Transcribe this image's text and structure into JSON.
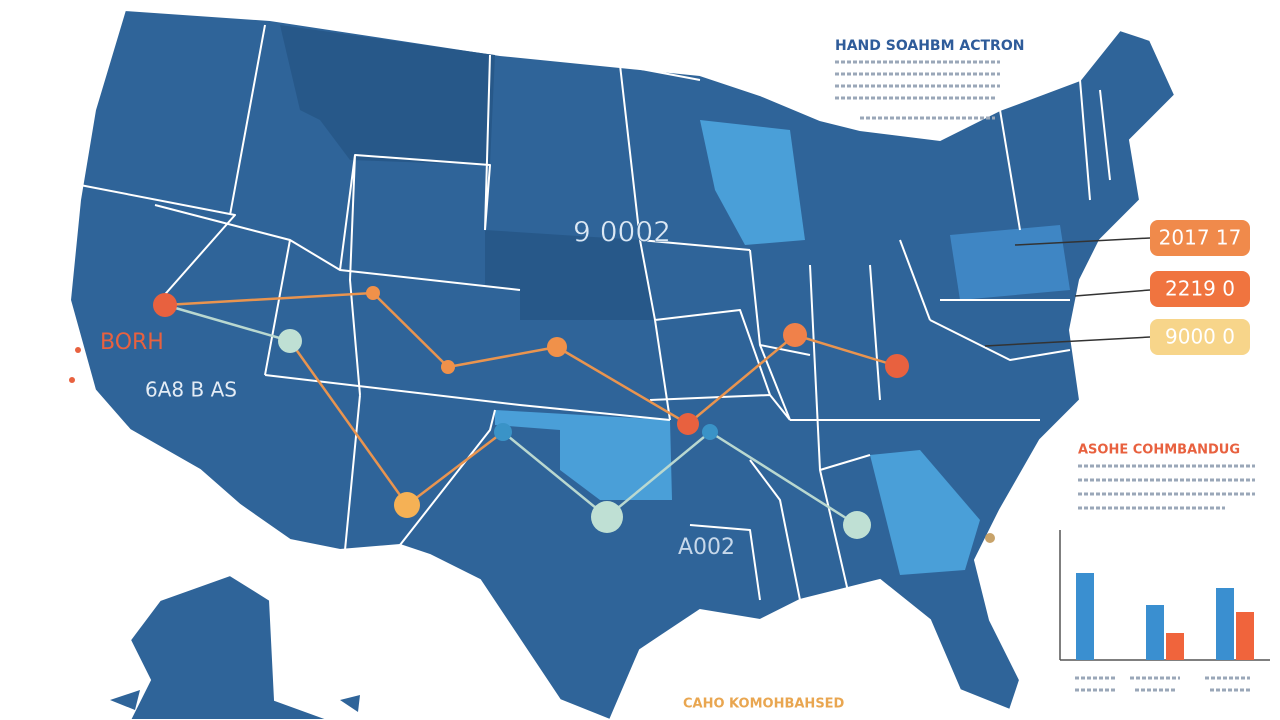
{
  "header": {
    "title": "HAND SOAHBM ACTRON"
  },
  "map_labels": [
    "9 0002",
    "BORH",
    "6A8 B AS",
    "A002"
  ],
  "callouts": [
    "2017 17",
    "2219 0",
    "9000 0"
  ],
  "section": {
    "title": "ASOHE COHMBANDUG"
  },
  "chart_data": {
    "type": "bar",
    "series": [
      {
        "color": "#3a8fd0",
        "values": [
          87,
          55,
          72
        ]
      },
      {
        "color": "#f0643c",
        "values": [
          null,
          27,
          48
        ]
      }
    ],
    "ylim": [
      0,
      120
    ]
  },
  "footer": {
    "title": "CAHO KOMOHBAHSED"
  }
}
